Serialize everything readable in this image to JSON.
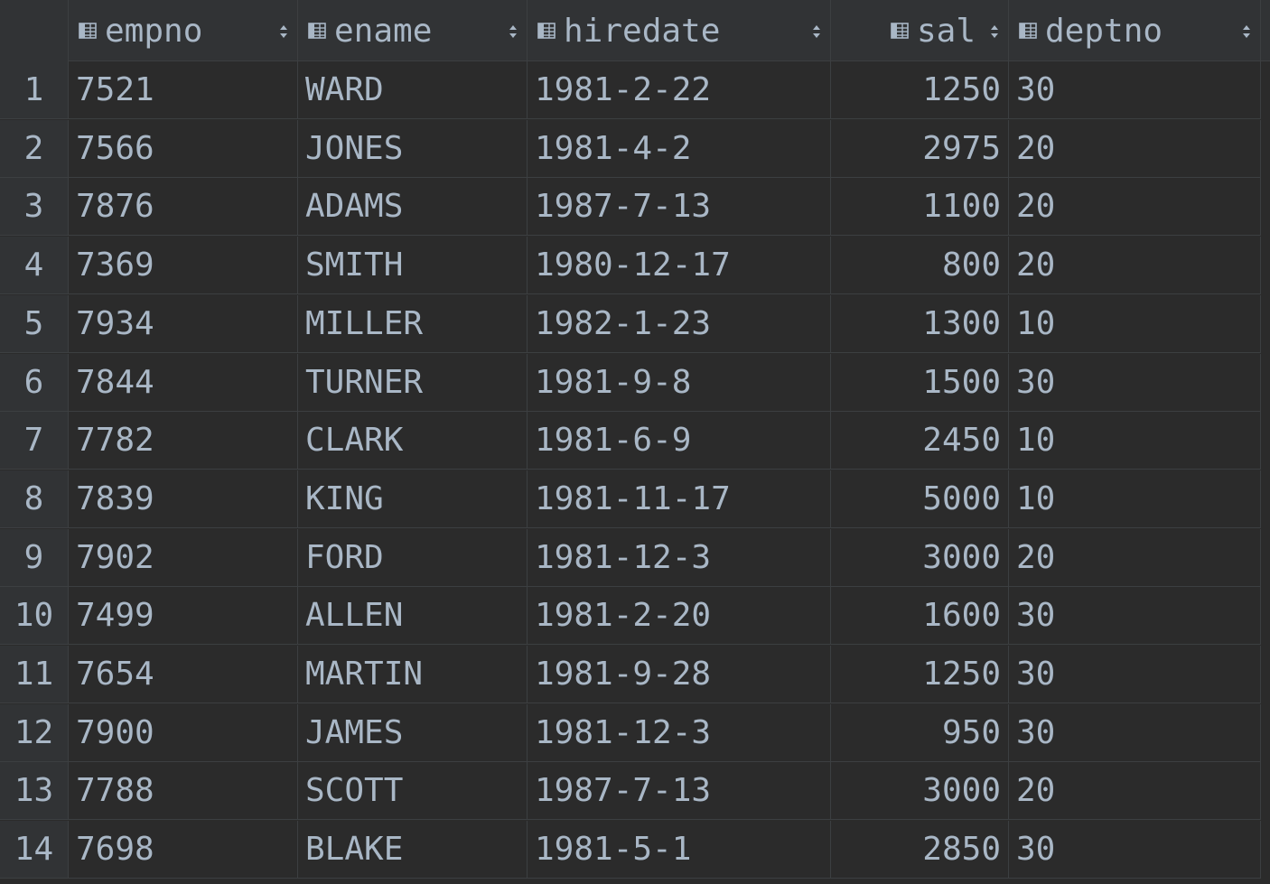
{
  "table": {
    "columns": [
      {
        "key": "empno",
        "label": "empno",
        "icon": "column-icon",
        "align": "left"
      },
      {
        "key": "ename",
        "label": "ename",
        "icon": "column-icon",
        "align": "left"
      },
      {
        "key": "hiredate",
        "label": "hiredate",
        "icon": "column-icon",
        "align": "left"
      },
      {
        "key": "sal",
        "label": "sal",
        "icon": "column-icon",
        "align": "right"
      },
      {
        "key": "deptno",
        "label": "deptno",
        "icon": "column-icon",
        "align": "left"
      }
    ],
    "rows": [
      {
        "num": "1",
        "empno": "7521",
        "ename": "WARD",
        "hiredate": "1981-2-22",
        "sal": "1250",
        "deptno": "30"
      },
      {
        "num": "2",
        "empno": "7566",
        "ename": "JONES",
        "hiredate": "1981-4-2",
        "sal": "2975",
        "deptno": "20"
      },
      {
        "num": "3",
        "empno": "7876",
        "ename": "ADAMS",
        "hiredate": "1987-7-13",
        "sal": "1100",
        "deptno": "20"
      },
      {
        "num": "4",
        "empno": "7369",
        "ename": "SMITH",
        "hiredate": "1980-12-17",
        "sal": "800",
        "deptno": "20"
      },
      {
        "num": "5",
        "empno": "7934",
        "ename": "MILLER",
        "hiredate": "1982-1-23",
        "sal": "1300",
        "deptno": "10"
      },
      {
        "num": "6",
        "empno": "7844",
        "ename": "TURNER",
        "hiredate": "1981-9-8",
        "sal": "1500",
        "deptno": "30"
      },
      {
        "num": "7",
        "empno": "7782",
        "ename": "CLARK",
        "hiredate": "1981-6-9",
        "sal": "2450",
        "deptno": "10"
      },
      {
        "num": "8",
        "empno": "7839",
        "ename": "KING",
        "hiredate": "1981-11-17",
        "sal": "5000",
        "deptno": "10"
      },
      {
        "num": "9",
        "empno": "7902",
        "ename": "FORD",
        "hiredate": "1981-12-3",
        "sal": "3000",
        "deptno": "20"
      },
      {
        "num": "10",
        "empno": "7499",
        "ename": "ALLEN",
        "hiredate": "1981-2-20",
        "sal": "1600",
        "deptno": "30"
      },
      {
        "num": "11",
        "empno": "7654",
        "ename": "MARTIN",
        "hiredate": "1981-9-28",
        "sal": "1250",
        "deptno": "30"
      },
      {
        "num": "12",
        "empno": "7900",
        "ename": "JAMES",
        "hiredate": "1981-12-3",
        "sal": "950",
        "deptno": "30"
      },
      {
        "num": "13",
        "empno": "7788",
        "ename": "SCOTT",
        "hiredate": "1987-7-13",
        "sal": "3000",
        "deptno": "20"
      },
      {
        "num": "14",
        "empno": "7698",
        "ename": "BLAKE",
        "hiredate": "1981-5-1",
        "sal": "2850",
        "deptno": "30"
      }
    ]
  },
  "colors": {
    "background": "#2b2b2b",
    "header_background": "#313335",
    "grid_line": "#3c3f41",
    "text": "#a9b7c6"
  }
}
